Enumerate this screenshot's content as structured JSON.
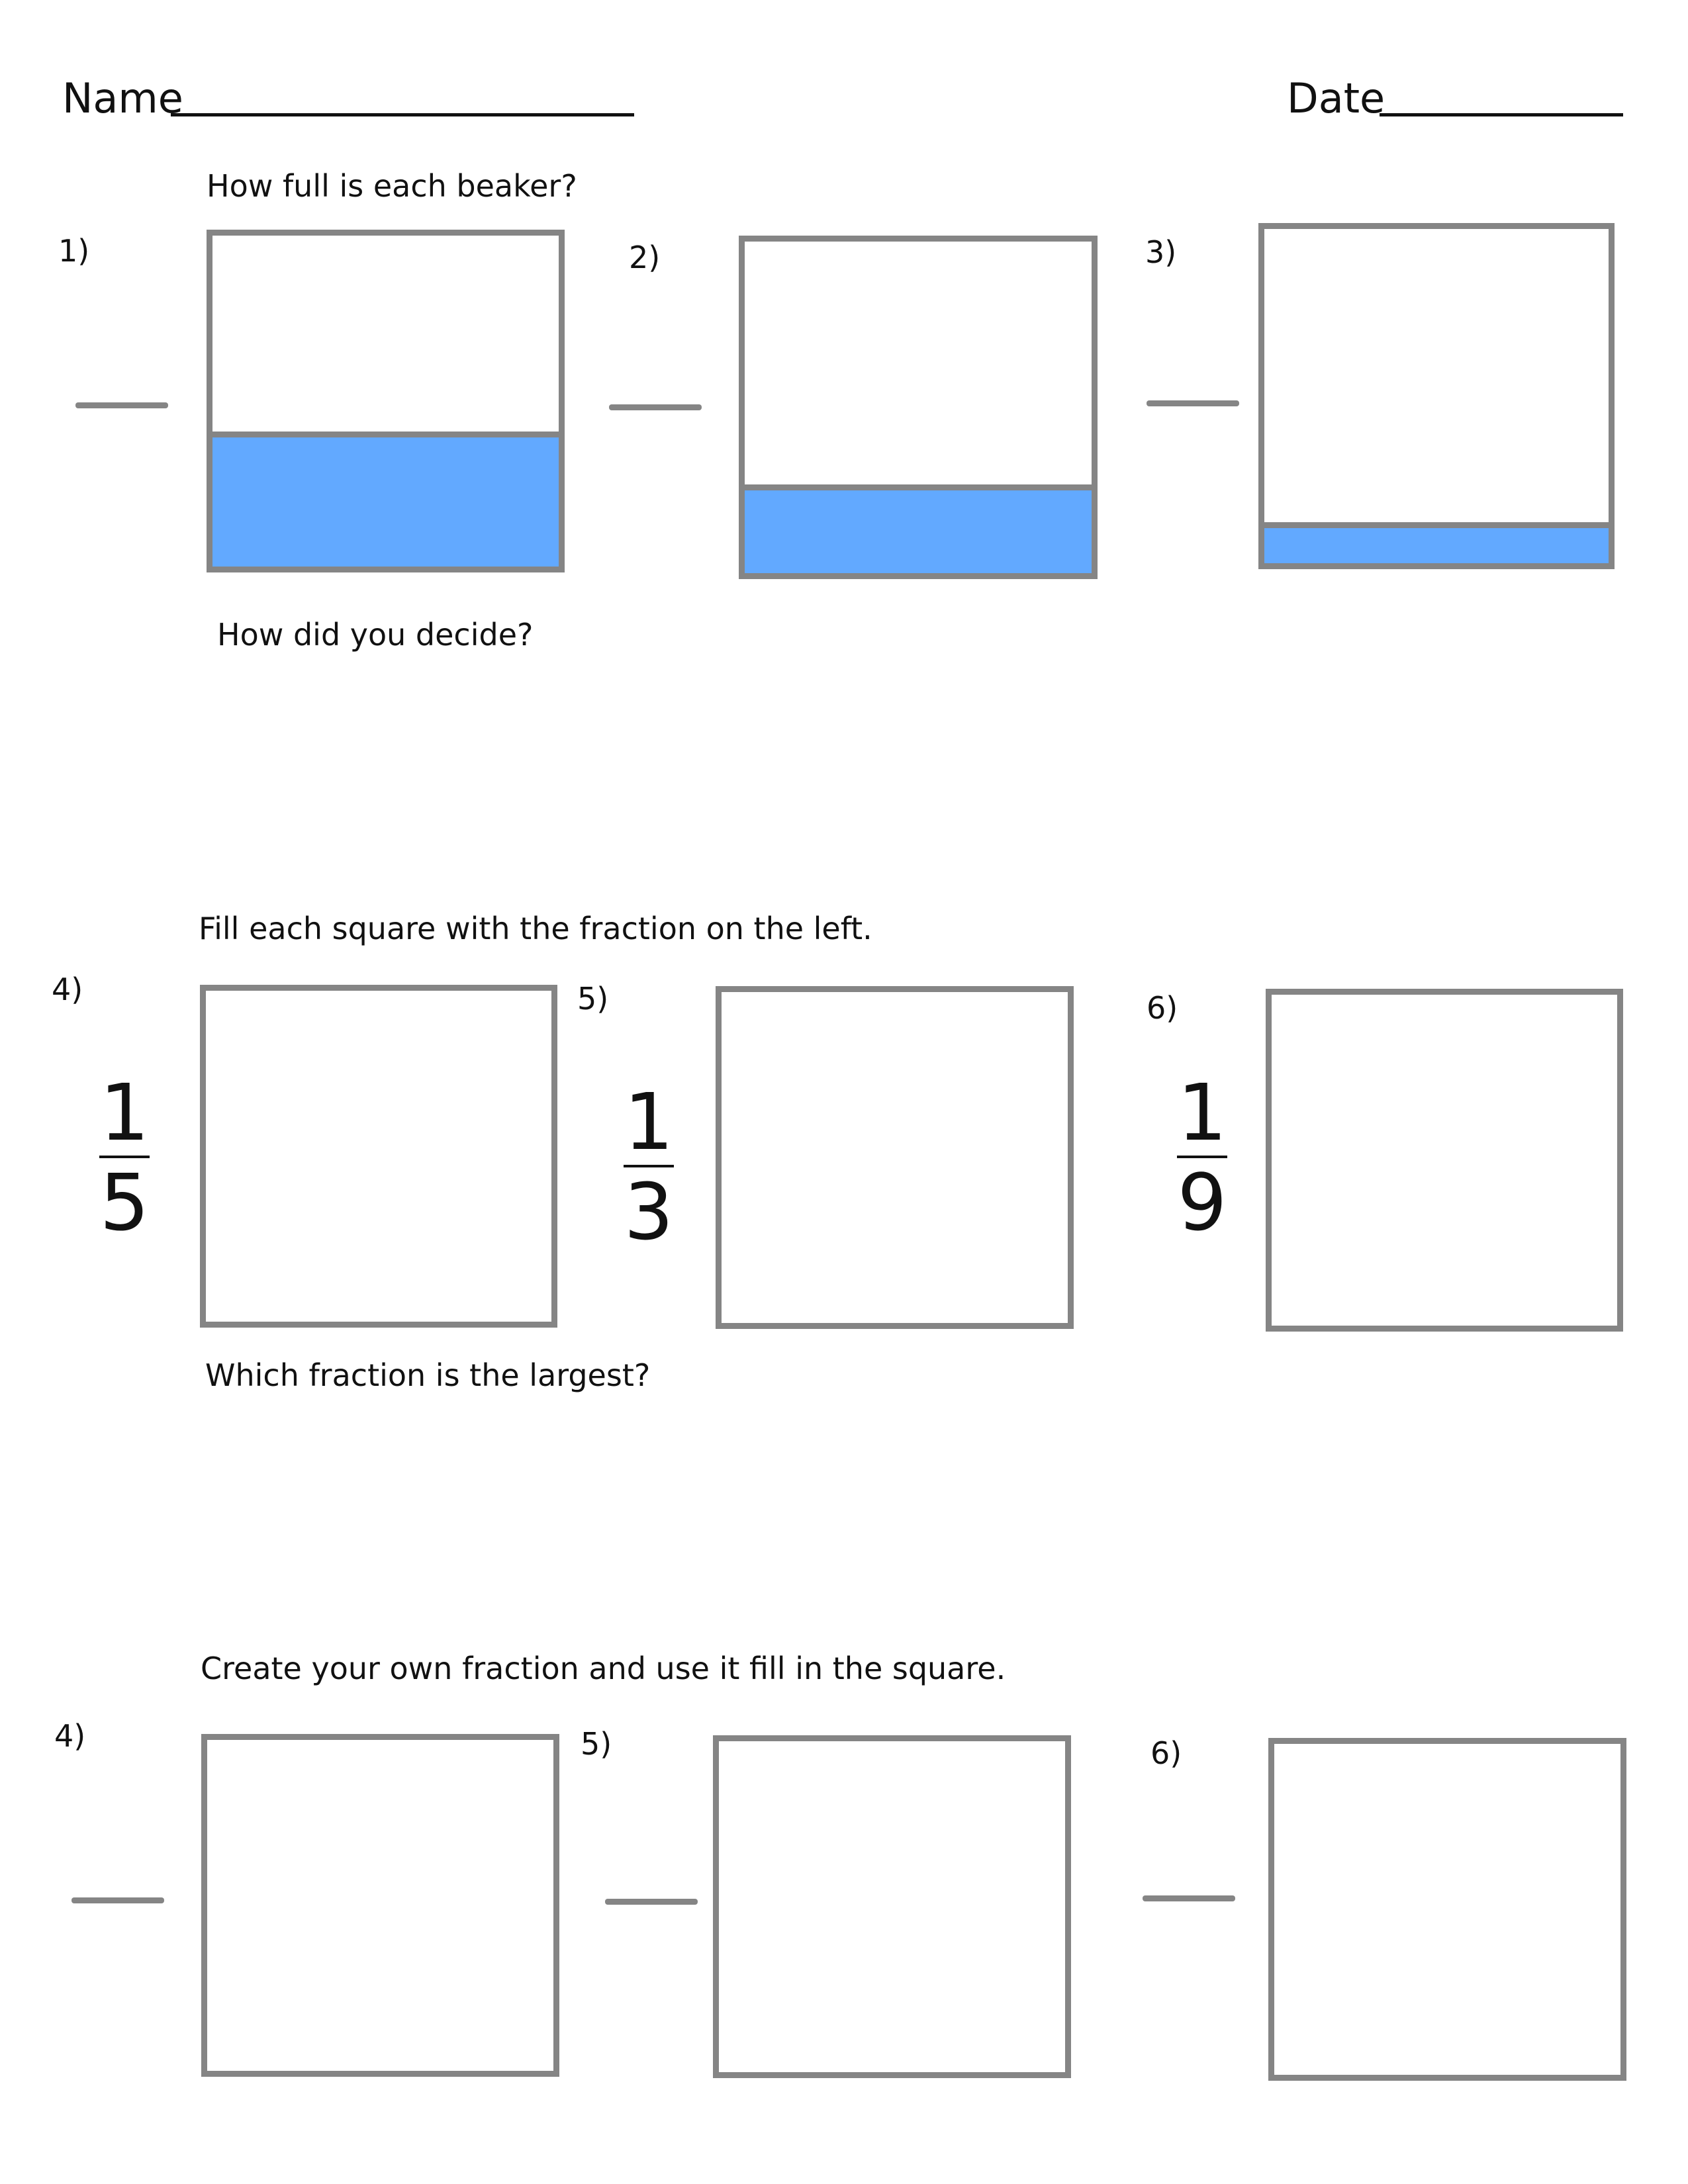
{
  "header": {
    "name_label": "Name",
    "date_label": "Date"
  },
  "section1": {
    "instruction": "How full is each beaker?",
    "followup": "How did you decide?",
    "items": [
      {
        "number": "1)",
        "filled_fraction": 0.39
      },
      {
        "number": "2)",
        "filled_fraction": 0.25
      },
      {
        "number": "3)",
        "filled_fraction": 0.105
      }
    ]
  },
  "section2": {
    "instruction": "Fill each square with the fraction on the left.",
    "followup": "Which fraction is the largest?",
    "items": [
      {
        "number": "4)",
        "numerator": "1",
        "denominator": "5"
      },
      {
        "number": "5)",
        "numerator": "1",
        "denominator": "3"
      },
      {
        "number": "6)",
        "numerator": "1",
        "denominator": "9"
      }
    ]
  },
  "section3": {
    "instruction": "Create your own fraction and use it fill in the square.",
    "items": [
      {
        "number": "4)"
      },
      {
        "number": "5)"
      },
      {
        "number": "6)"
      }
    ]
  },
  "colors": {
    "box_border": "#858585",
    "water_fill": "#62a9ff",
    "text": "#111111"
  }
}
